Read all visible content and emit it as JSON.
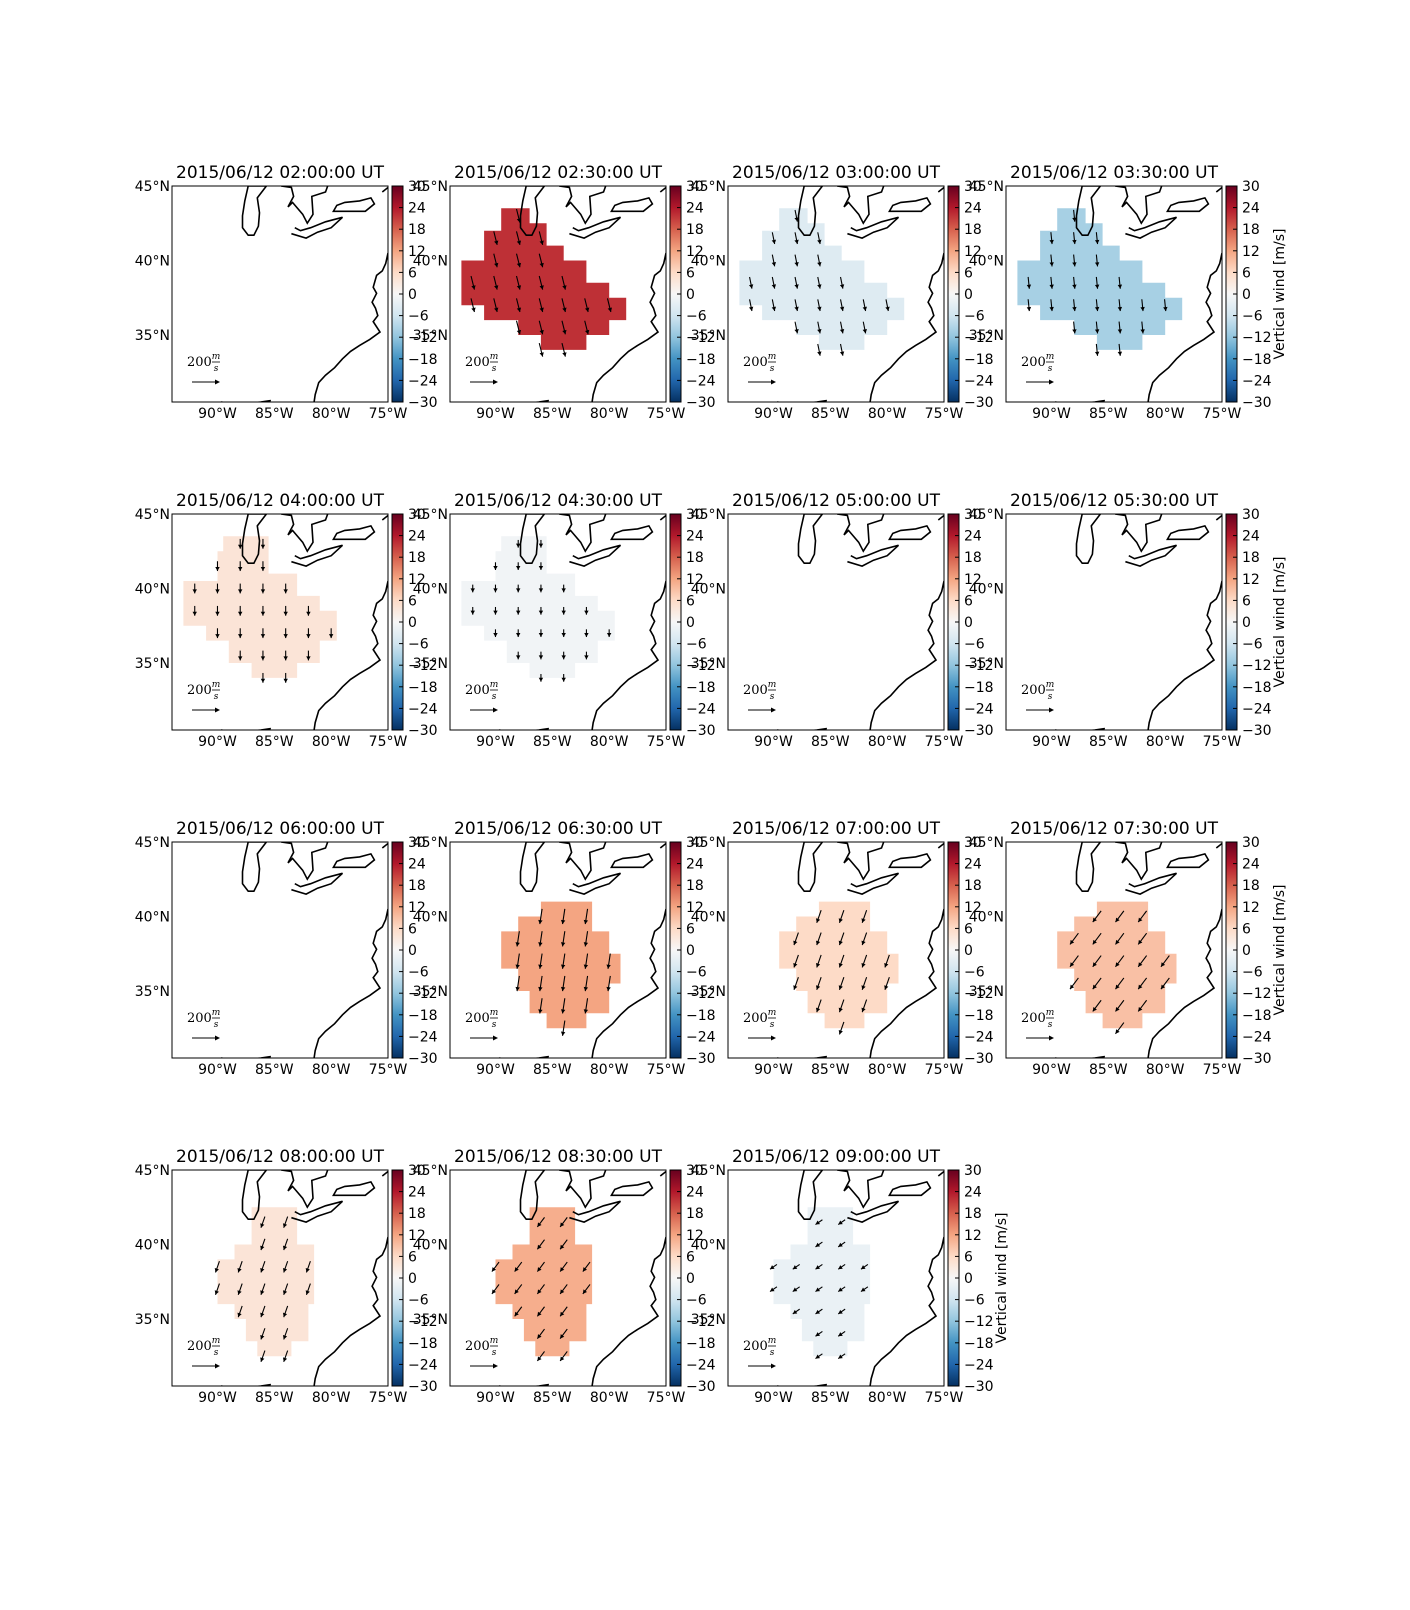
{
  "chart_data": {
    "type": "heatmap",
    "colorbar": {
      "label": "Vertical wind [m/s]",
      "range": [
        -30,
        30
      ],
      "ticks": [
        "30",
        "24",
        "18",
        "12",
        "6",
        "0",
        "−6",
        "−12",
        "−18",
        "−24",
        "−30"
      ],
      "colormap": "RdBu_r",
      "colors": [
        "#053061",
        "#2166ac",
        "#4393c3",
        "#92c5de",
        "#d1e5f0",
        "#f7f7f7",
        "#fddbc7",
        "#f4a582",
        "#d6604d",
        "#b2182b",
        "#67001f"
      ]
    },
    "xaxis": {
      "range": [
        -94,
        -75
      ],
      "ticks": [
        "90°W",
        "85°W",
        "80°W",
        "75°W"
      ],
      "tick_values": [
        -90,
        -85,
        -80,
        -75
      ]
    },
    "yaxis": {
      "range": [
        30.5,
        45
      ],
      "ticks": [
        "45°N",
        "40°N",
        "35°N"
      ],
      "tick_values": [
        45,
        40,
        35
      ]
    },
    "quiver_key": {
      "label": "200",
      "units_num": "m",
      "units_den": "s"
    },
    "panels": [
      {
        "title": "2015/06/12 02:00:00 UT",
        "value": 0,
        "region": null,
        "arrow_dir": [
          0,
          -1
        ],
        "arrow_len": 0
      },
      {
        "title": "2015/06/12 02:30:00 UT",
        "value": 22,
        "region": "A",
        "arrow_dir": [
          0.25,
          -1
        ],
        "arrow_len": 1.0
      },
      {
        "title": "2015/06/12 03:00:00 UT",
        "value": -4,
        "region": "A",
        "arrow_dir": [
          0.2,
          -1
        ],
        "arrow_len": 0.85
      },
      {
        "title": "2015/06/12 03:30:00 UT",
        "value": -10,
        "region": "A",
        "arrow_dir": [
          0.1,
          -1
        ],
        "arrow_len": 0.85
      },
      {
        "title": "2015/06/12 04:00:00 UT",
        "value": 4,
        "region": "B",
        "arrow_dir": [
          0,
          -1
        ],
        "arrow_len": 0.7
      },
      {
        "title": "2015/06/12 04:30:00 UT",
        "value": -1,
        "region": "B",
        "arrow_dir": [
          0,
          -1
        ],
        "arrow_len": 0.55
      },
      {
        "title": "2015/06/12 05:00:00 UT",
        "value": 0,
        "region": null,
        "arrow_dir": [
          0,
          -1
        ],
        "arrow_len": 0
      },
      {
        "title": "2015/06/12 05:30:00 UT",
        "value": 0,
        "region": null,
        "arrow_dir": [
          0,
          -1
        ],
        "arrow_len": 0
      },
      {
        "title": "2015/06/12 06:00:00 UT",
        "value": 0,
        "region": null,
        "arrow_dir": [
          0,
          -1
        ],
        "arrow_len": 0
      },
      {
        "title": "2015/06/12 06:30:00 UT",
        "value": 12,
        "region": "C",
        "arrow_dir": [
          -0.15,
          -1
        ],
        "arrow_len": 1.1
      },
      {
        "title": "2015/06/12 07:00:00 UT",
        "value": 6,
        "region": "C",
        "arrow_dir": [
          -0.35,
          -1
        ],
        "arrow_len": 0.95
      },
      {
        "title": "2015/06/12 07:30:00 UT",
        "value": 9,
        "region": "C",
        "arrow_dir": [
          -0.6,
          -0.8
        ],
        "arrow_len": 1.0
      },
      {
        "title": "2015/06/12 08:00:00 UT",
        "value": 4,
        "region": "D",
        "arrow_dir": [
          -0.35,
          -1
        ],
        "arrow_len": 0.85
      },
      {
        "title": "2015/06/12 08:30:00 UT",
        "value": 11,
        "region": "D",
        "arrow_dir": [
          -0.6,
          -0.8
        ],
        "arrow_len": 0.85
      },
      {
        "title": "2015/06/12 09:00:00 UT",
        "value": -2,
        "region": "D",
        "arrow_dir": [
          -0.8,
          -0.55
        ],
        "arrow_len": 0.6
      }
    ]
  }
}
